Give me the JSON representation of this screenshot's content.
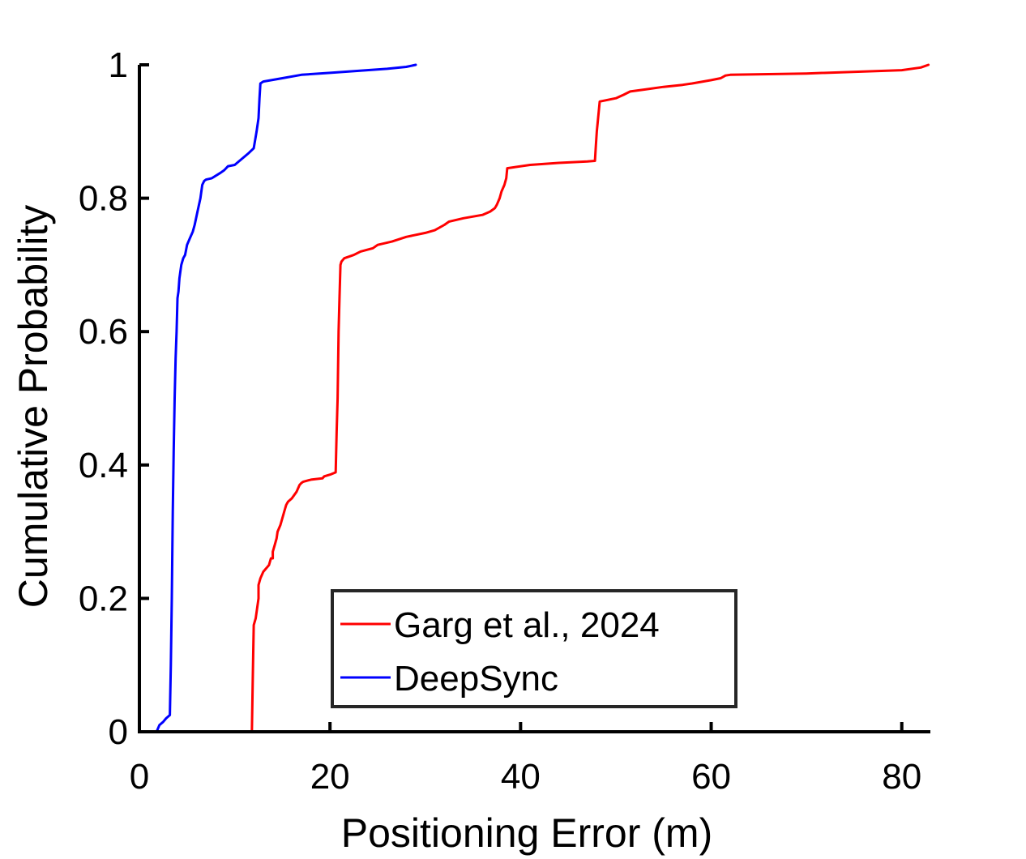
{
  "chart_data": {
    "type": "line",
    "title": "",
    "xlabel": "Positioning Error (m)",
    "ylabel": "Cumulative Probability",
    "xlim": [
      0,
      83
    ],
    "ylim": [
      0,
      1
    ],
    "xticks": [
      0,
      20,
      40,
      60,
      80
    ],
    "yticks": [
      0,
      0.2,
      0.4,
      0.6,
      0.8,
      1
    ],
    "xtick_labels": [
      "0",
      "20",
      "40",
      "60",
      "80"
    ],
    "ytick_labels": [
      "0",
      "0.2",
      "0.4",
      "0.6",
      "0.8",
      "1"
    ],
    "grid": false,
    "legend": {
      "placement": "bottom-center",
      "boxed": true
    },
    "series": [
      {
        "name": "Garg et al., 2024",
        "color": "#ff0000",
        "x": [
          11.8,
          11.9,
          12.0,
          12.2,
          12.5,
          12.5,
          12.7,
          13.0,
          13.6,
          13.8,
          14.0,
          14.0,
          14.2,
          14.4,
          14.5,
          14.8,
          15.2,
          15.4,
          15.6,
          16.0,
          16.5,
          16.8,
          17.0,
          17.2,
          18.0,
          19.2,
          19.4,
          20.1,
          20.6,
          20.7,
          20.8,
          20.9,
          21.0,
          21.1,
          21.2,
          21.5,
          22.5,
          23.2,
          24.5,
          25.0,
          26.5,
          28.0,
          30.0,
          31.0,
          32.0,
          32.5,
          34.0,
          36.0,
          36.8,
          37.3,
          37.5,
          37.8,
          38.0,
          38.3,
          38.5,
          38.6,
          41.0,
          44.0,
          47.0,
          47.8,
          47.9,
          48.0,
          48.2,
          48.3,
          50.0,
          50.8,
          51.5,
          53.0,
          55.0,
          57.0,
          58.0,
          60.0,
          61.0,
          61.5,
          62.0,
          70.0,
          80.0,
          82.0,
          82.8
        ],
        "y": [
          0.0,
          0.08,
          0.16,
          0.17,
          0.2,
          0.22,
          0.23,
          0.24,
          0.25,
          0.26,
          0.26,
          0.27,
          0.28,
          0.29,
          0.3,
          0.31,
          0.33,
          0.34,
          0.345,
          0.35,
          0.36,
          0.37,
          0.373,
          0.375,
          0.378,
          0.38,
          0.383,
          0.386,
          0.389,
          0.45,
          0.5,
          0.6,
          0.65,
          0.7,
          0.705,
          0.71,
          0.715,
          0.72,
          0.725,
          0.73,
          0.735,
          0.742,
          0.748,
          0.752,
          0.76,
          0.765,
          0.77,
          0.775,
          0.78,
          0.785,
          0.79,
          0.8,
          0.81,
          0.82,
          0.83,
          0.845,
          0.85,
          0.853,
          0.855,
          0.856,
          0.88,
          0.9,
          0.93,
          0.945,
          0.95,
          0.955,
          0.96,
          0.963,
          0.967,
          0.97,
          0.972,
          0.977,
          0.98,
          0.984,
          0.985,
          0.987,
          0.992,
          0.996,
          1.0
        ]
      },
      {
        "name": "DeepSync",
        "color": "#0000ff",
        "x": [
          1.8,
          2.1,
          2.5,
          2.8,
          3.2,
          3.3,
          3.4,
          3.5,
          3.6,
          3.7,
          3.8,
          3.9,
          4.0,
          4.1,
          4.2,
          4.4,
          4.6,
          4.8,
          5.0,
          5.3,
          5.6,
          5.8,
          6.1,
          6.4,
          6.6,
          6.8,
          7.0,
          7.6,
          8.5,
          8.9,
          9.3,
          10.0,
          10.5,
          11.0,
          11.5,
          12.0,
          12.3,
          12.5,
          12.6,
          12.7,
          13.0,
          15.0,
          17.0,
          20.0,
          23.0,
          26.0,
          28.0,
          29.0
        ],
        "y": [
          0.0,
          0.01,
          0.015,
          0.02,
          0.025,
          0.1,
          0.2,
          0.33,
          0.42,
          0.5,
          0.56,
          0.6,
          0.65,
          0.66,
          0.68,
          0.7,
          0.71,
          0.715,
          0.73,
          0.74,
          0.75,
          0.76,
          0.78,
          0.8,
          0.82,
          0.826,
          0.828,
          0.83,
          0.838,
          0.842,
          0.848,
          0.85,
          0.856,
          0.862,
          0.868,
          0.875,
          0.9,
          0.92,
          0.95,
          0.972,
          0.975,
          0.98,
          0.985,
          0.988,
          0.991,
          0.994,
          0.997,
          1.0
        ]
      }
    ]
  }
}
